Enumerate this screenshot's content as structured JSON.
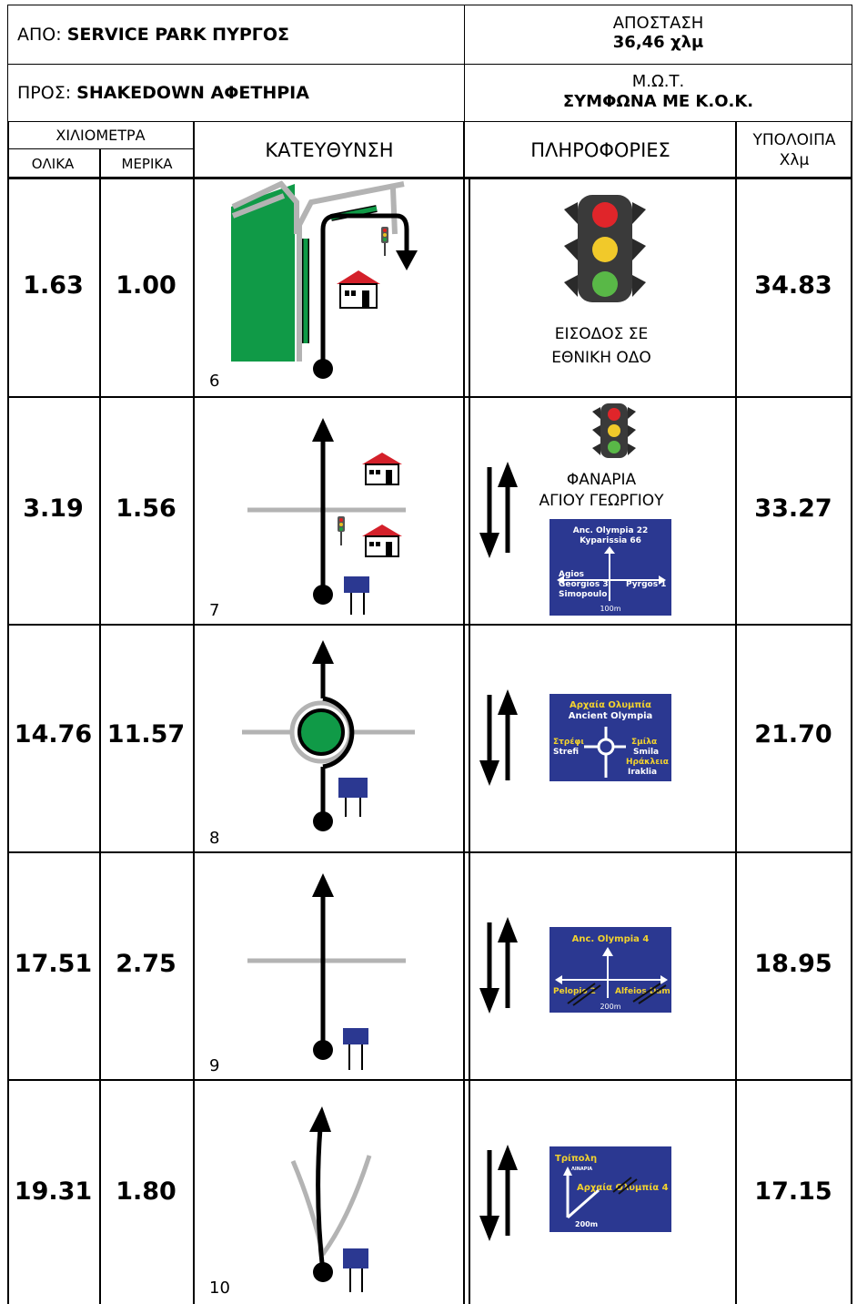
{
  "header": {
    "from_label": "ΑΠΟ:",
    "from_value": "SERVICE PARK ΠΥΡΓΟΣ",
    "distance_label": "ΑΠΟΣΤΑΣΗ",
    "distance_value": "36,46 χλμ",
    "to_label": "ΠΡΟΣ:",
    "to_value": "SHAKEDOWN ΑΦΕΤΗΡΙΑ",
    "speed_label": "Μ.Ω.Τ.",
    "speed_value": "ΣΥΜΦΩΝΑ ΜΕ Κ.Ο.Κ."
  },
  "columns": {
    "km": "ΧΙΛΙΟΜΕΤΡΑ",
    "total": "ΟΛΙΚΑ",
    "partial": "ΜΕΡΙΚΑ",
    "direction": "ΚΑΤΕΥΘΥΝΣΗ",
    "info": "ΠΛΗΡΟΦΟΡΙΕΣ",
    "remaining_1": "ΥΠΟΛΟΙΠΑ",
    "remaining_2": "Χλμ"
  },
  "rows": [
    {
      "total": "1.63",
      "partial": "1.00",
      "index": "6",
      "remaining": "34.83",
      "info_1": "ΕΙΣΟΔΟΣ ΣΕ",
      "info_2": "ΕΘΝΙΚΗ ΟΔΟ"
    },
    {
      "total": "3.19",
      "partial": "1.56",
      "index": "7",
      "remaining": "33.27",
      "info_1": "ΦΑΝΑΡΙΑ",
      "info_2": "ΑΓΙΟΥ ΓΕΩΡΓΙΟΥ"
    },
    {
      "total": "14.76",
      "partial": "11.57",
      "index": "8",
      "remaining": "21.70"
    },
    {
      "total": "17.51",
      "partial": "2.75",
      "index": "9",
      "remaining": "18.95"
    },
    {
      "total": "19.31",
      "partial": "1.80",
      "index": "10",
      "remaining": "17.15"
    }
  ],
  "signs": {
    "s7": {
      "top1": "Anc. Olympia 22",
      "top2": "Kyparissia 66",
      "left1": "Agios",
      "left2": "Georgios 3",
      "left3": "Simopoulo",
      "right": "Pyrgos 1",
      "dist": "100m"
    },
    "s8": {
      "top1": "Αρχαία Ολυμπία",
      "top2": "Ancient Olympia",
      "left1": "Στρέφι",
      "left2": "Strefi",
      "right1": "Σμίλα",
      "right2": "Smila",
      "right3": "Ηράκλεια",
      "right4": "Iraklia"
    },
    "s9": {
      "top": "Anc. Olympia 4",
      "left": "Pelopio 2",
      "right": "Alfeios Dam 2",
      "dist": "200m"
    },
    "s10": {
      "top": "Τρίπολη",
      "small": "ΛΙΝΑΡΙΑ",
      "right": "Αρχαία Ολυμπία 4",
      "dist": "200m"
    }
  },
  "colors": {
    "sign_blue": "#2b3891",
    "sign_yellow": "#f2d22e",
    "green": "#109a47",
    "road_gray": "#b3b3b3",
    "house_red": "#d4202a"
  }
}
